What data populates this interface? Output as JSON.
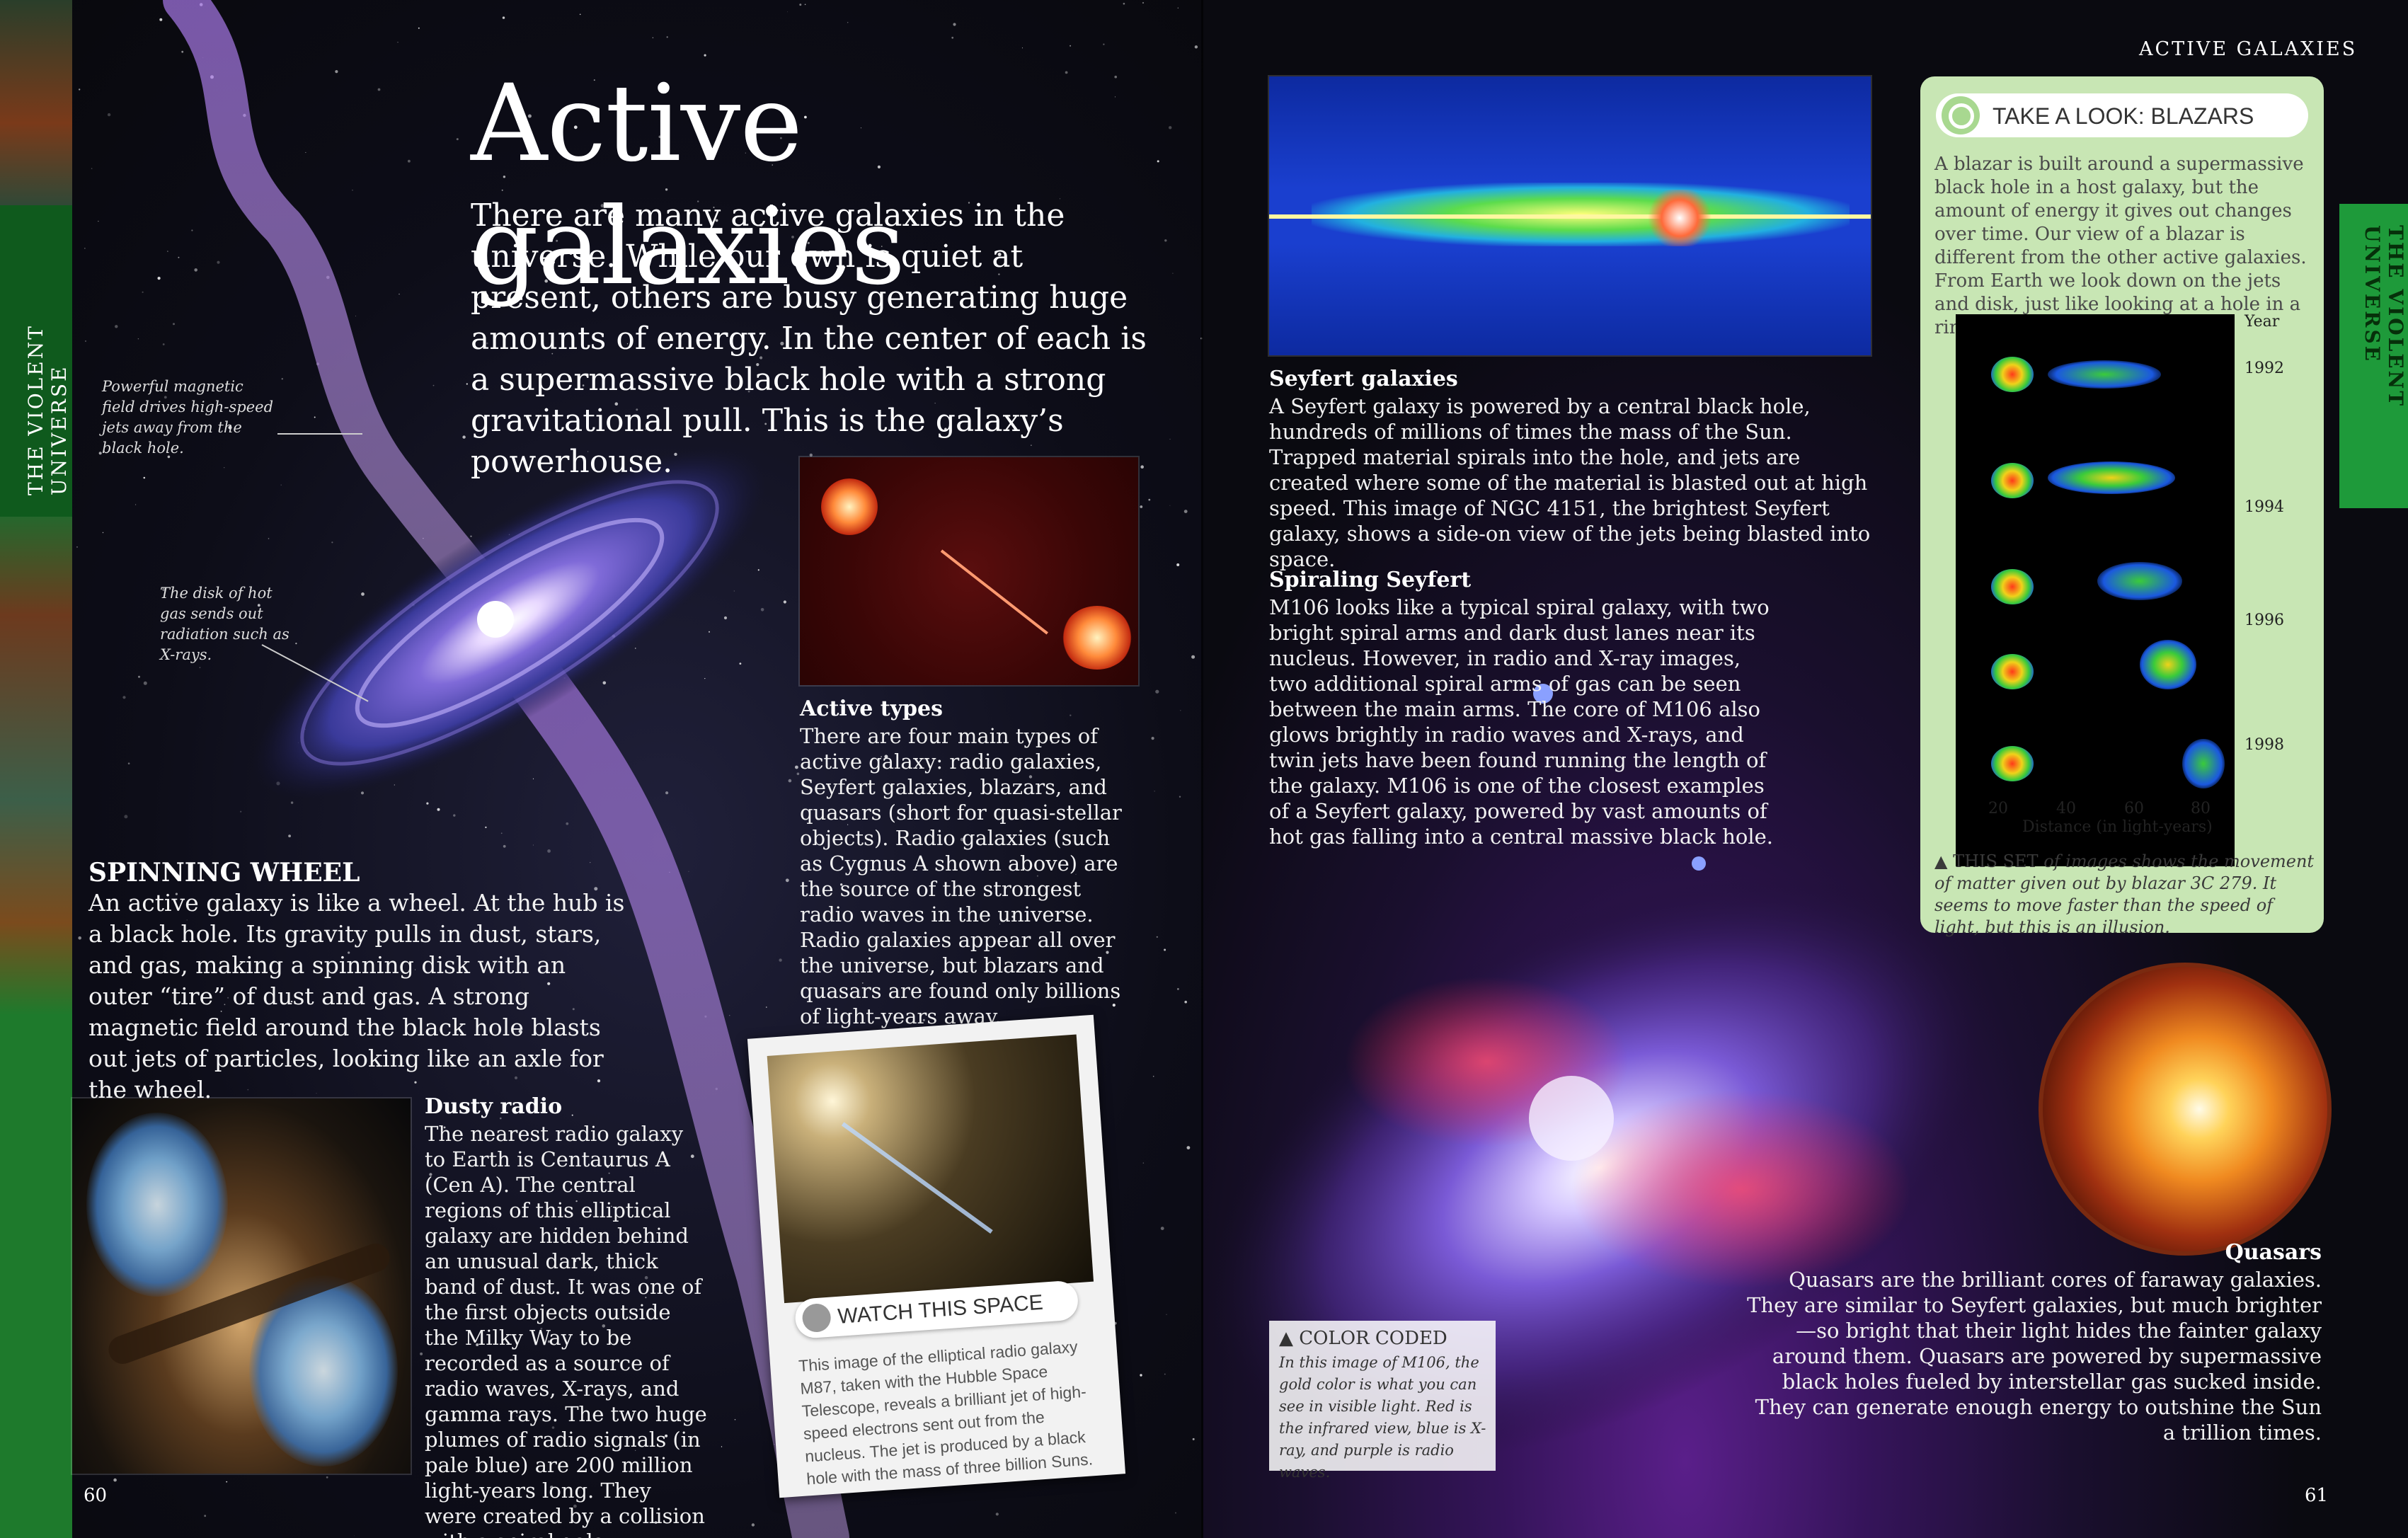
{
  "running_head": "ACTIVE GALAXIES",
  "side_tab_label": "THE VIOLENT UNIVERSE",
  "page_numbers": {
    "left": "60",
    "right": "61"
  },
  "left_page": {
    "title": "Active galaxies",
    "intro": "There are many active galaxies in the universe. While our own is quiet at present, others are busy generating huge amounts of energy. In the center of each is a supermassive black hole with a strong gravitational pull. This is the galaxy’s powerhouse.",
    "labels": {
      "jets": "Powerful magnetic field drives high-speed jets away from the black hole.",
      "disk": "The disk of hot gas sends out radiation such as X-rays."
    },
    "spinning_wheel": {
      "heading": "SPINNING WHEEL",
      "text": "An active galaxy is like a wheel. At the hub is a black hole. Its gravity pulls in dust, stars, and gas, making a spinning disk with an outer “tire” of dust and gas. A strong magnetic field around the black hole blasts out jets of particles, looking like an axle for the wheel."
    },
    "active_types": {
      "heading": "Active types",
      "text": "There are four main types of active galaxy: radio galaxies, Seyfert galaxies, blazars, and quasars (short for quasi-stellar objects). Radio galaxies (such as Cygnus A shown above) are the source of the strongest radio waves in the universe. Radio galaxies appear all over the universe, but blazars and quasars are found only billions of light-years away."
    },
    "dusty_radio": {
      "heading": "Dusty radio",
      "text": "The nearest radio galaxy to Earth is Centaurus A (Cen A). The central regions of this elliptical galaxy are hidden behind an unusual dark, thick band of dust. It was one of the first objects outside the Milky Way to be recorded as a source of radio waves, X-rays, and gamma rays. The two huge plumes of radio signals (in pale blue) are 200 million light-years long. They were created by a collision with a spiral galaxy."
    },
    "watch_this_space": {
      "label": "WATCH THIS SPACE",
      "text": "This image of the elliptical radio galaxy M87, taken with the Hubble Space Telescope, reveals a brilliant jet of high-speed electrons sent out from the nucleus. The jet is produced by a black hole with the mass of three billion Suns."
    }
  },
  "right_page": {
    "seyfert": {
      "heading": "Seyfert galaxies",
      "text": "A Seyfert galaxy is powered by a central black hole, hundreds of millions of times the mass of the Sun. Trapped material spirals into the hole, and jets are created where some of the material is blasted out at high speed. This image of NGC 4151, the brightest Seyfert galaxy, shows a side-on view of the jets being blasted into space."
    },
    "spiraling": {
      "heading": "Spiraling Seyfert",
      "text": "M106 looks like a typical spiral galaxy, with two bright spiral arms and dark dust lanes near its nucleus. However, in radio and X-ray images, two additional spiral arms of gas can be seen between the main arms. The core of M106 also glows brightly in radio waves and X-rays, and twin jets have been found running the length of the galaxy. M106 is one of the closest examples of a Seyfert galaxy, powered by vast amounts of hot gas falling into a central massive black hole."
    },
    "color_coded": {
      "label": "▲ COLOR CODED",
      "text": "In this image of M106, the gold color is what you can see in visible light. Red is the infrared view, blue is X-ray, and purple is radio waves."
    },
    "quasars": {
      "heading": "Quasars",
      "text": "Quasars are the brilliant cores of faraway galaxies. They are similar to Seyfert galaxies, but much brighter—so bright that their light hides the fainter galaxy around them. Quasars are powered by supermassive black holes fueled by interstellar gas sucked inside. They can generate enough energy to outshine the Sun a trillion times."
    },
    "blazars": {
      "heading": "TAKE A LOOK: BLAZARS",
      "text": "A blazar is built around a supermassive black hole in a host galaxy, but the amount of energy it gives out changes over time. Our view of a blazar is different from the other active galaxies. From Earth we look down on the jets and disk, just like looking at a hole in a ring doughnut.",
      "year_label": "Year",
      "years": [
        "1992",
        "1994",
        "1996",
        "1998"
      ],
      "distance_ticks": [
        "20",
        "40",
        "60",
        "80"
      ],
      "distance_label": "Distance (in light-years)",
      "caption_lead": "▲ THIS SET",
      "caption": "of images shows the movement of matter given out by blazar 3C 279. It seems to move faster than the speed of light, but this is an illusion."
    }
  },
  "colors": {
    "tab_green": "#1e7a2c",
    "sidebar_green": "#c8e6b4"
  }
}
